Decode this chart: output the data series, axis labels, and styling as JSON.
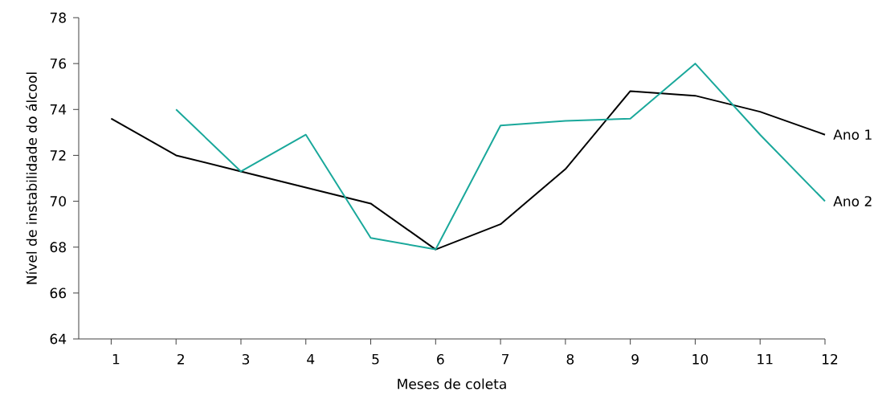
{
  "chart_data": {
    "type": "line",
    "xlabel": "Meses de coleta",
    "ylabel": "Nível de instabilidade do álcool",
    "categories": [
      "1",
      "2",
      "3",
      "4",
      "5",
      "6",
      "7",
      "8",
      "9",
      "10",
      "11",
      "12"
    ],
    "series": [
      {
        "name": "Ano 1",
        "color": "#000000",
        "values": [
          73.6,
          72.0,
          71.3,
          70.6,
          69.9,
          67.9,
          69.0,
          71.4,
          74.8,
          74.6,
          73.9,
          72.9
        ]
      },
      {
        "name": "Ano 2",
        "color": "#1aa89b",
        "values": [
          null,
          74.0,
          71.3,
          72.9,
          68.4,
          67.9,
          73.3,
          73.5,
          73.6,
          76.0,
          72.9,
          70.0
        ]
      }
    ],
    "ylim": [
      64,
      78
    ],
    "yticks": [
      64,
      66,
      68,
      70,
      72,
      74,
      76,
      78
    ],
    "grid": false,
    "legend": false,
    "marker": "none",
    "line_style": "solid"
  }
}
